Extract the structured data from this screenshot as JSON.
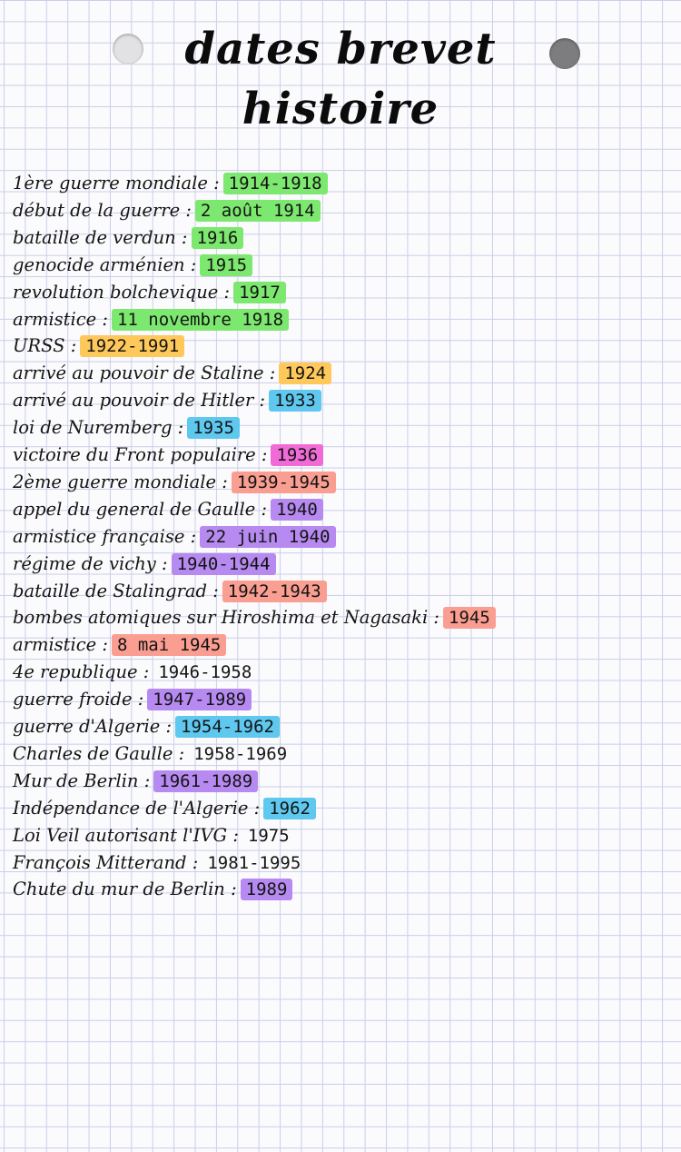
{
  "title": {
    "line1": "dates brevet",
    "line2": "histoire"
  },
  "colors": {
    "green": "#7de86f",
    "orange": "#ffc85a",
    "blue": "#5fc8ef",
    "pink": "#f06ad8",
    "red": "#fb9e92",
    "purple": "#b68af0"
  },
  "entries": [
    {
      "label": "1ère guerre mondiale :",
      "value": "1914-1918",
      "highlight": "green"
    },
    {
      "label": "début de la guerre :",
      "value": "2 août 1914",
      "highlight": "green"
    },
    {
      "label": "bataille de verdun :",
      "value": "1916",
      "highlight": "green"
    },
    {
      "label": "genocide arménien :",
      "value": "1915",
      "highlight": "green"
    },
    {
      "label": "revolution bolchevique :",
      "value": "1917",
      "highlight": "green"
    },
    {
      "label": "armistice :",
      "value": "11 novembre 1918",
      "highlight": "green"
    },
    {
      "label": "URSS :",
      "value": "1922-1991",
      "highlight": "orange"
    },
    {
      "label": "arrivé au pouvoir de Staline :",
      "value": "1924",
      "highlight": "orange"
    },
    {
      "label": "arrivé au pouvoir de Hitler :",
      "value": "1933",
      "highlight": "blue"
    },
    {
      "label": "loi de Nuremberg :",
      "value": "1935",
      "highlight": "blue"
    },
    {
      "label": "victoire du Front populaire :",
      "value": "1936",
      "highlight": "pink"
    },
    {
      "label": "2ème guerre mondiale :",
      "value": "1939-1945",
      "highlight": "red"
    },
    {
      "label": "appel du general de Gaulle :",
      "value": "1940",
      "highlight": "purple"
    },
    {
      "label": "armistice française :",
      "value": "22 juin 1940",
      "highlight": "purple"
    },
    {
      "label": "régime de vichy :",
      "value": "1940-1944",
      "highlight": "purple"
    },
    {
      "label": "bataille de Stalingrad :",
      "value": "1942-1943",
      "highlight": "red"
    },
    {
      "label": "bombes atomiques sur Hiroshima et Nagasaki :",
      "value": "1945",
      "highlight": "red"
    },
    {
      "label": "armistice :",
      "value": "8 mai 1945",
      "highlight": "red"
    },
    {
      "label": "4e republique :",
      "value": "1946-1958",
      "highlight": "none"
    },
    {
      "label": "guerre froide :",
      "value": "1947-1989",
      "highlight": "purple"
    },
    {
      "label": "guerre d'Algerie :",
      "value": "1954-1962",
      "highlight": "blue"
    },
    {
      "label": "Charles de Gaulle :",
      "value": "1958-1969",
      "highlight": "none"
    },
    {
      "label": "Mur de Berlin :",
      "value": "1961-1989",
      "highlight": "purple"
    },
    {
      "label": "Indépendance de l'Algerie :",
      "value": "1962",
      "highlight": "blue"
    },
    {
      "label": "Loi Veil autorisant l'IVG :",
      "value": "1975",
      "highlight": "none"
    },
    {
      "label": "François Mitterand :",
      "value": "1981-1995",
      "highlight": "none"
    },
    {
      "label": "Chute du mur de Berlin :",
      "value": "1989",
      "highlight": "purple"
    }
  ]
}
